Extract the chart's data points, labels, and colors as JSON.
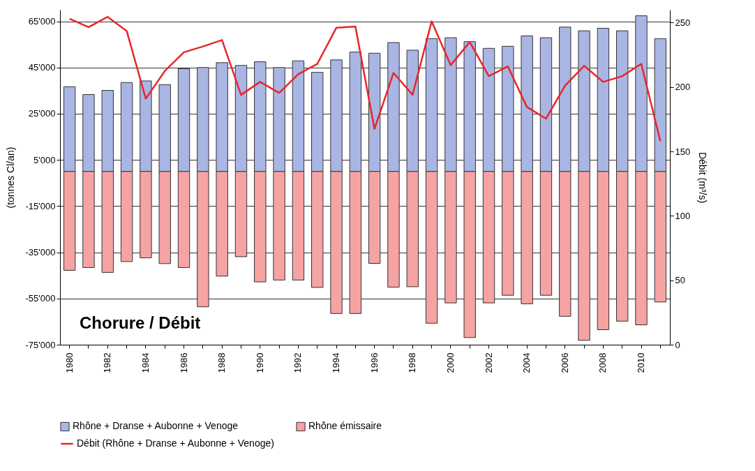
{
  "chart_data": {
    "type": "bar",
    "title": "Chorure / Débit",
    "ylabel": "(tonnes Cl/an)",
    "y2label": "Débit (m³/s)",
    "categories": [
      "1980",
      null,
      "1982",
      null,
      "1984",
      null,
      "1986",
      null,
      "1988",
      null,
      "1990",
      null,
      "1992",
      null,
      "1994",
      null,
      "1996",
      null,
      "1998",
      null,
      "2000",
      null,
      "2002",
      null,
      "2004",
      null,
      "2006",
      null,
      "2008",
      null,
      "2010",
      null
    ],
    "series": [
      {
        "name": "Rhône + Dranse + Aubonne + Venoge",
        "color": "#a9b6e4",
        "values": [
          36700,
          33300,
          35100,
          38500,
          39200,
          37600,
          44500,
          45000,
          47100,
          45900,
          47500,
          45000,
          47900,
          42900,
          48300,
          51700,
          51200,
          55800,
          52500,
          57500,
          57900,
          56200,
          53300,
          54200,
          58700,
          57900,
          62500,
          60900,
          62000,
          60900,
          67400,
          57500
        ]
      },
      {
        "name": "Rhône émissaire",
        "color": "#f5a3a3",
        "values": [
          -42800,
          -41600,
          -43700,
          -39000,
          -37400,
          -39900,
          -41600,
          -58600,
          -45300,
          -36900,
          -47800,
          -47000,
          -47000,
          -50200,
          -61500,
          -61500,
          -39800,
          -50100,
          -49900,
          -65700,
          -56900,
          -71900,
          -56900,
          -53600,
          -57300,
          -53600,
          -62700,
          -73100,
          -68500,
          -64800,
          -66400,
          -56500
        ]
      },
      {
        "name": "Débit (Rhône + Dranse + Aubonne + Venoge)",
        "type": "line",
        "axis": "y2",
        "color": "#e8262b",
        "values": [
          253,
          246.5,
          254.5,
          243.5,
          191,
          212.5,
          227,
          231.5,
          236.5,
          194,
          204,
          195.5,
          210,
          218,
          246,
          247,
          167.5,
          211,
          194,
          251,
          217,
          235,
          208.5,
          216,
          184.5,
          175.5,
          201,
          216.5,
          204,
          208.5,
          218,
          158
        ]
      }
    ],
    "stacked": true,
    "ylim": [
      -75000,
      70000
    ],
    "yticks": [
      {
        "value": -75000,
        "label": "-75'000"
      },
      {
        "value": -55000,
        "label": "-55'000"
      },
      {
        "value": -35000,
        "label": "-35'000"
      },
      {
        "value": -15000,
        "label": "-15'000"
      },
      {
        "value": 5000,
        "label": "5'000"
      },
      {
        "value": 25000,
        "label": "25'000"
      },
      {
        "value": 45000,
        "label": "45'000"
      },
      {
        "value": 65000,
        "label": "65'000"
      }
    ],
    "y2lim": [
      0,
      260
    ],
    "y2ticks": [
      0,
      50,
      100,
      150,
      200,
      250
    ],
    "grid": "y",
    "legend": "bottom"
  }
}
